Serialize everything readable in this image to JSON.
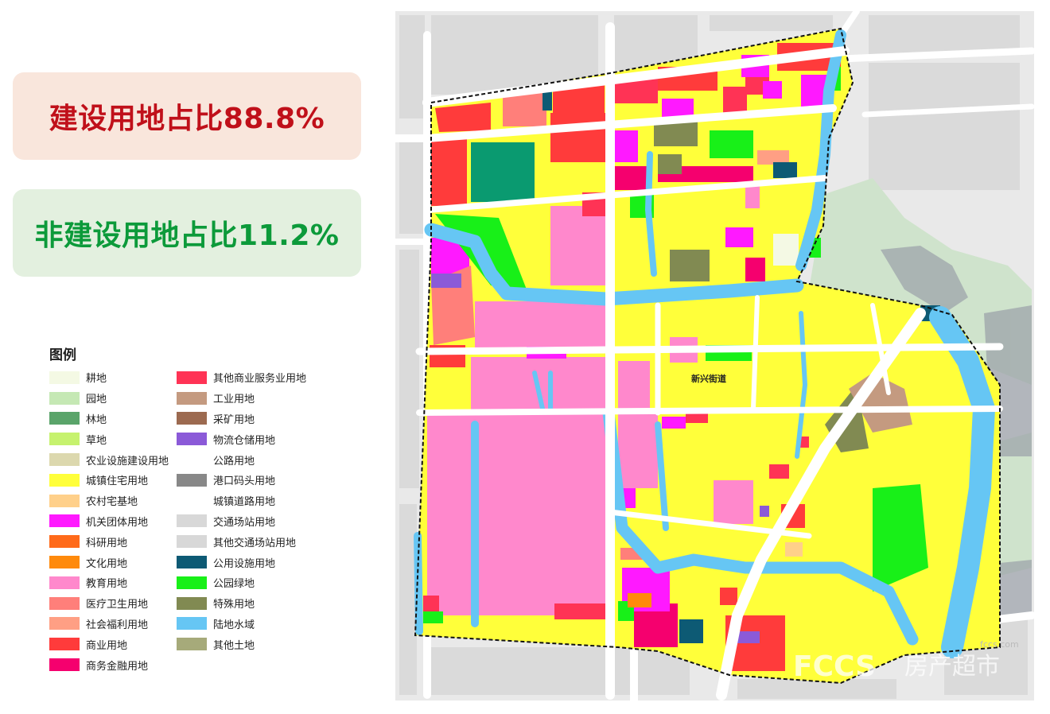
{
  "stats": {
    "construction_ratio": "建设用地占比88.8%",
    "nonconstruction_ratio": "非建设用地占比11.2%"
  },
  "legend": {
    "title": "图例",
    "col1": [
      {
        "label": "耕地",
        "color": "#f4f9e4"
      },
      {
        "label": "园地",
        "color": "#c5e8b4"
      },
      {
        "label": "林地",
        "color": "#5aa46a"
      },
      {
        "label": "草地",
        "color": "#c6f26e"
      },
      {
        "label": "农业设施建设用地",
        "color": "#dcd8ae"
      },
      {
        "label": "城镇住宅用地",
        "color": "#ffff3a"
      },
      {
        "label": "农村宅基地",
        "color": "#ffd08a"
      },
      {
        "label": "机关团体用地",
        "color": "#ff19ff"
      },
      {
        "label": "科研用地",
        "color": "#ff6a1a"
      },
      {
        "label": "文化用地",
        "color": "#ff8a0c"
      },
      {
        "label": "教育用地",
        "color": "#ff88cc"
      },
      {
        "label": "医疗卫生用地",
        "color": "#ff7f7a"
      },
      {
        "label": "社会福利用地",
        "color": "#ff9f84"
      },
      {
        "label": "商业用地",
        "color": "#ff3b3b"
      },
      {
        "label": "商务金融用地",
        "color": "#f5006e"
      }
    ],
    "col2": [
      {
        "label": "其他商业服务业用地",
        "color": "#ff3355"
      },
      {
        "label": "工业用地",
        "color": "#c49a80"
      },
      {
        "label": "采矿用地",
        "color": "#9c6a50"
      },
      {
        "label": "物流仓储用地",
        "color": "#8b5ad8"
      },
      {
        "label": "公路用地",
        "color": "#ffffff"
      },
      {
        "label": "港口码头用地",
        "color": "#888888"
      },
      {
        "label": "城镇道路用地",
        "color": "#ffffff"
      },
      {
        "label": "交通场站用地",
        "color": "#d8d8d8"
      },
      {
        "label": "其他交通场站用地",
        "color": "#d8d8d8"
      },
      {
        "label": "公用设施用地",
        "color": "#0d5a74"
      },
      {
        "label": "公园绿地",
        "color": "#18f018"
      },
      {
        "label": "特殊用地",
        "color": "#818a52"
      },
      {
        "label": "陆地水域",
        "color": "#66c6f4"
      },
      {
        "label": "其他土地",
        "color": "#a6aa7a"
      }
    ]
  },
  "map": {
    "district_label": "新兴街道",
    "watermark_domain": "fccs.com",
    "watermark_text": "房产超市"
  }
}
